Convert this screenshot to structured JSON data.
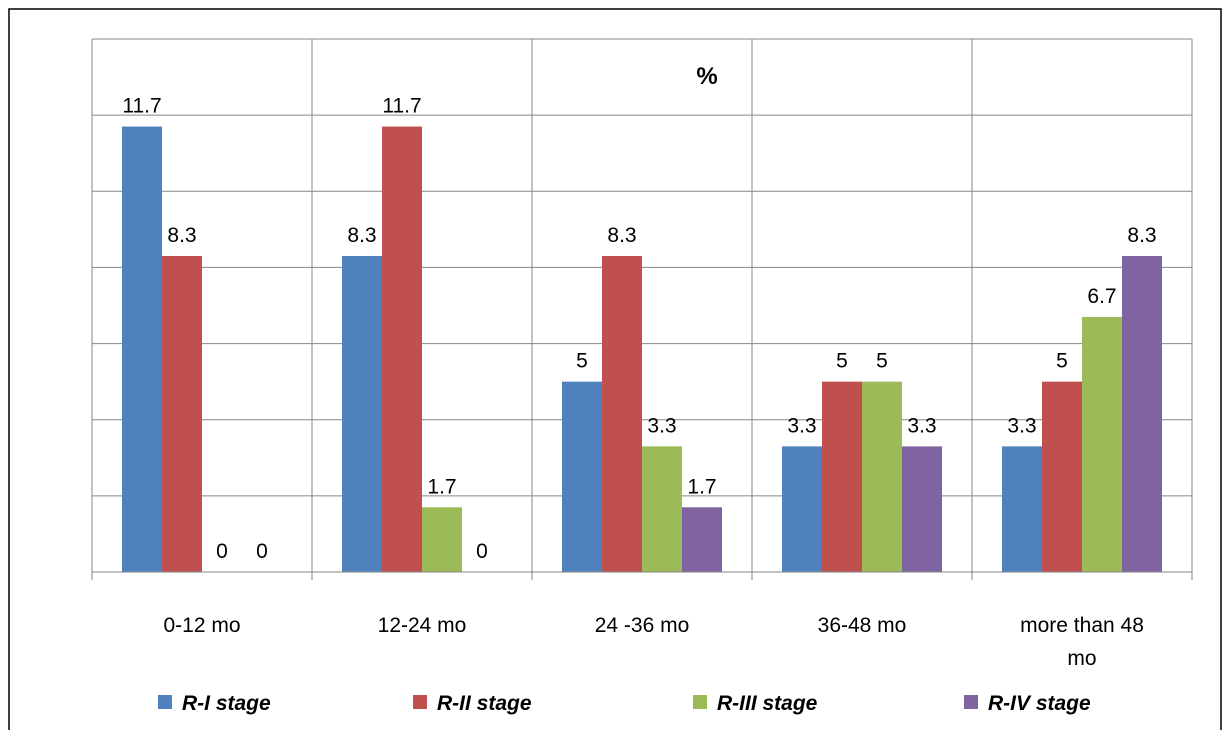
{
  "chart_data": {
    "type": "bar",
    "title": "%",
    "xlabel": "",
    "ylabel": "",
    "categories": [
      "0-12 mo",
      "12-24 mo",
      "24 -36 mo",
      "36-48 mo",
      "more than 48 mo"
    ],
    "series": [
      {
        "name": "R-I stage",
        "color": "#4F81BD",
        "values": [
          11.7,
          8.3,
          5,
          3.3,
          3.3
        ]
      },
      {
        "name": "R-II stage",
        "color": "#C0504D",
        "values": [
          8.3,
          11.7,
          8.3,
          5,
          5
        ]
      },
      {
        "name": "R-III stage",
        "color": "#9BBB59",
        "values": [
          0,
          1.7,
          3.3,
          5,
          6.7
        ]
      },
      {
        "name": "R-IV stage",
        "color": "#8064A2",
        "values": [
          0,
          0,
          1.7,
          3.3,
          8.3
        ]
      }
    ],
    "ylim": [
      0,
      14
    ],
    "ytick_step": 2,
    "y_tick_labels_visible": false,
    "grid": true,
    "legend_position": "bottom"
  }
}
